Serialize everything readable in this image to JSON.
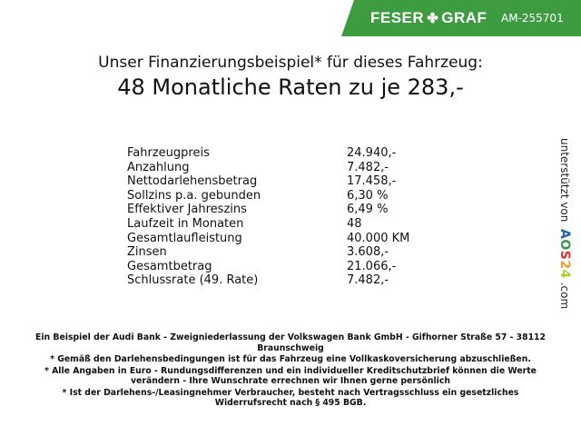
{
  "header": {
    "brand_left": "FESER",
    "brand_right": "GRAF",
    "code": "AM-255701",
    "brand_color": "#3d9b40"
  },
  "title": {
    "line1": "Unser Finanzierungsbeispiel* für dieses Fahrzeug:",
    "line2": "48 Monatliche Raten zu je 283,-"
  },
  "rows": [
    {
      "label": "Fahrzeugpreis",
      "value": "24.940,-"
    },
    {
      "label": "Anzahlung",
      "value": "7.482,-"
    },
    {
      "label": "Nettodarlehensbetrag",
      "value": "17.458,-"
    },
    {
      "label": "Sollzins p.a. gebunden",
      "value": "6,30 %"
    },
    {
      "label": "Effektiver Jahreszins",
      "value": "6,49 %"
    },
    {
      "label": "Laufzeit in Monaten",
      "value": "48"
    },
    {
      "label": "Gesamtlaufleistung",
      "value": "40.000 KM"
    },
    {
      "label": "Zinsen",
      "value": "3.608,-"
    },
    {
      "label": "Gesamtbetrag",
      "value": "21.066,-"
    },
    {
      "label": "Schlussrate (49. Rate)",
      "value": "7.482,-"
    }
  ],
  "side": {
    "prefix": "unterstützt von",
    "logo": [
      "A",
      "O",
      "S",
      "2",
      "4"
    ],
    "suffix": ".com"
  },
  "footer": [
    "Ein Beispiel der Audi Bank - Zweigniederlassung der Volkswagen Bank GmbH - Gifhorner Straße 57 - 38112 Braunschweig",
    "* Gemäß den Darlehensbedingungen ist für das Fahrzeug eine Vollkaskoversicherung abzuschließen.",
    "* Alle Angaben in Euro - Rundungsdifferenzen und ein individueller Kreditschutzbrief können die Werte verändern - Ihre Wunschrate errechnen wir Ihnen gerne persönlich",
    "* Ist der Darlehens-/Leasingnehmer Verbraucher, besteht nach Vertragsschluss ein gesetzliches Widerrufsrecht nach § 495 BGB."
  ]
}
